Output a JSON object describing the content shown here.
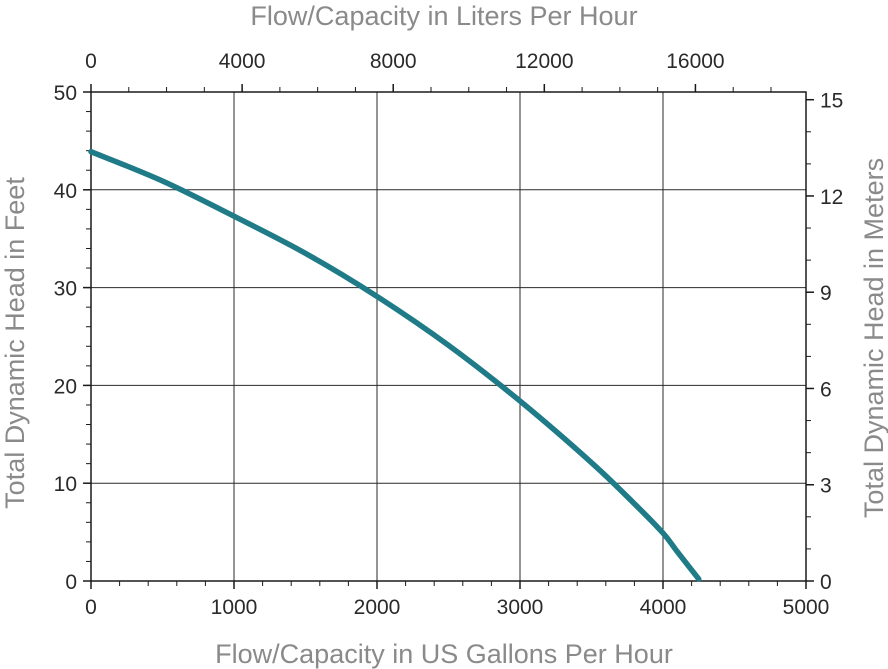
{
  "chart_data": {
    "type": "line",
    "title": "",
    "xlabel": "Flow/Capacity in US Gallons Per Hour",
    "ylabel": "Total Dynamic Head in Feet",
    "x2label": "Flow/Capacity in Liters Per Hour",
    "y2label": "Total Dynamic Head in Meters",
    "xlim": [
      0,
      5000
    ],
    "ylim": [
      0,
      50
    ],
    "x2lim": [
      0,
      18927
    ],
    "y2lim": [
      0,
      15.24
    ],
    "xticks": [
      "0",
      "1000",
      "2000",
      "3000",
      "4000",
      "5000"
    ],
    "yticks": [
      "0",
      "10",
      "20",
      "30",
      "40",
      "50"
    ],
    "x2ticks": [
      "0",
      "4000",
      "8000",
      "12000",
      "16000"
    ],
    "y2ticks": [
      "0",
      "3",
      "6",
      "9",
      "12",
      "15"
    ],
    "grid": true,
    "line_color": "#1f7b87",
    "series": [
      {
        "name": "",
        "x": [
          0,
          500,
          1000,
          1500,
          2000,
          2500,
          3000,
          3500,
          3800,
          4000,
          4100,
          4250
        ],
        "y": [
          43.9,
          40.9,
          37.3,
          33.5,
          29.1,
          24.1,
          18.4,
          12.1,
          7.9,
          4.9,
          3.0,
          0.2
        ]
      }
    ]
  }
}
